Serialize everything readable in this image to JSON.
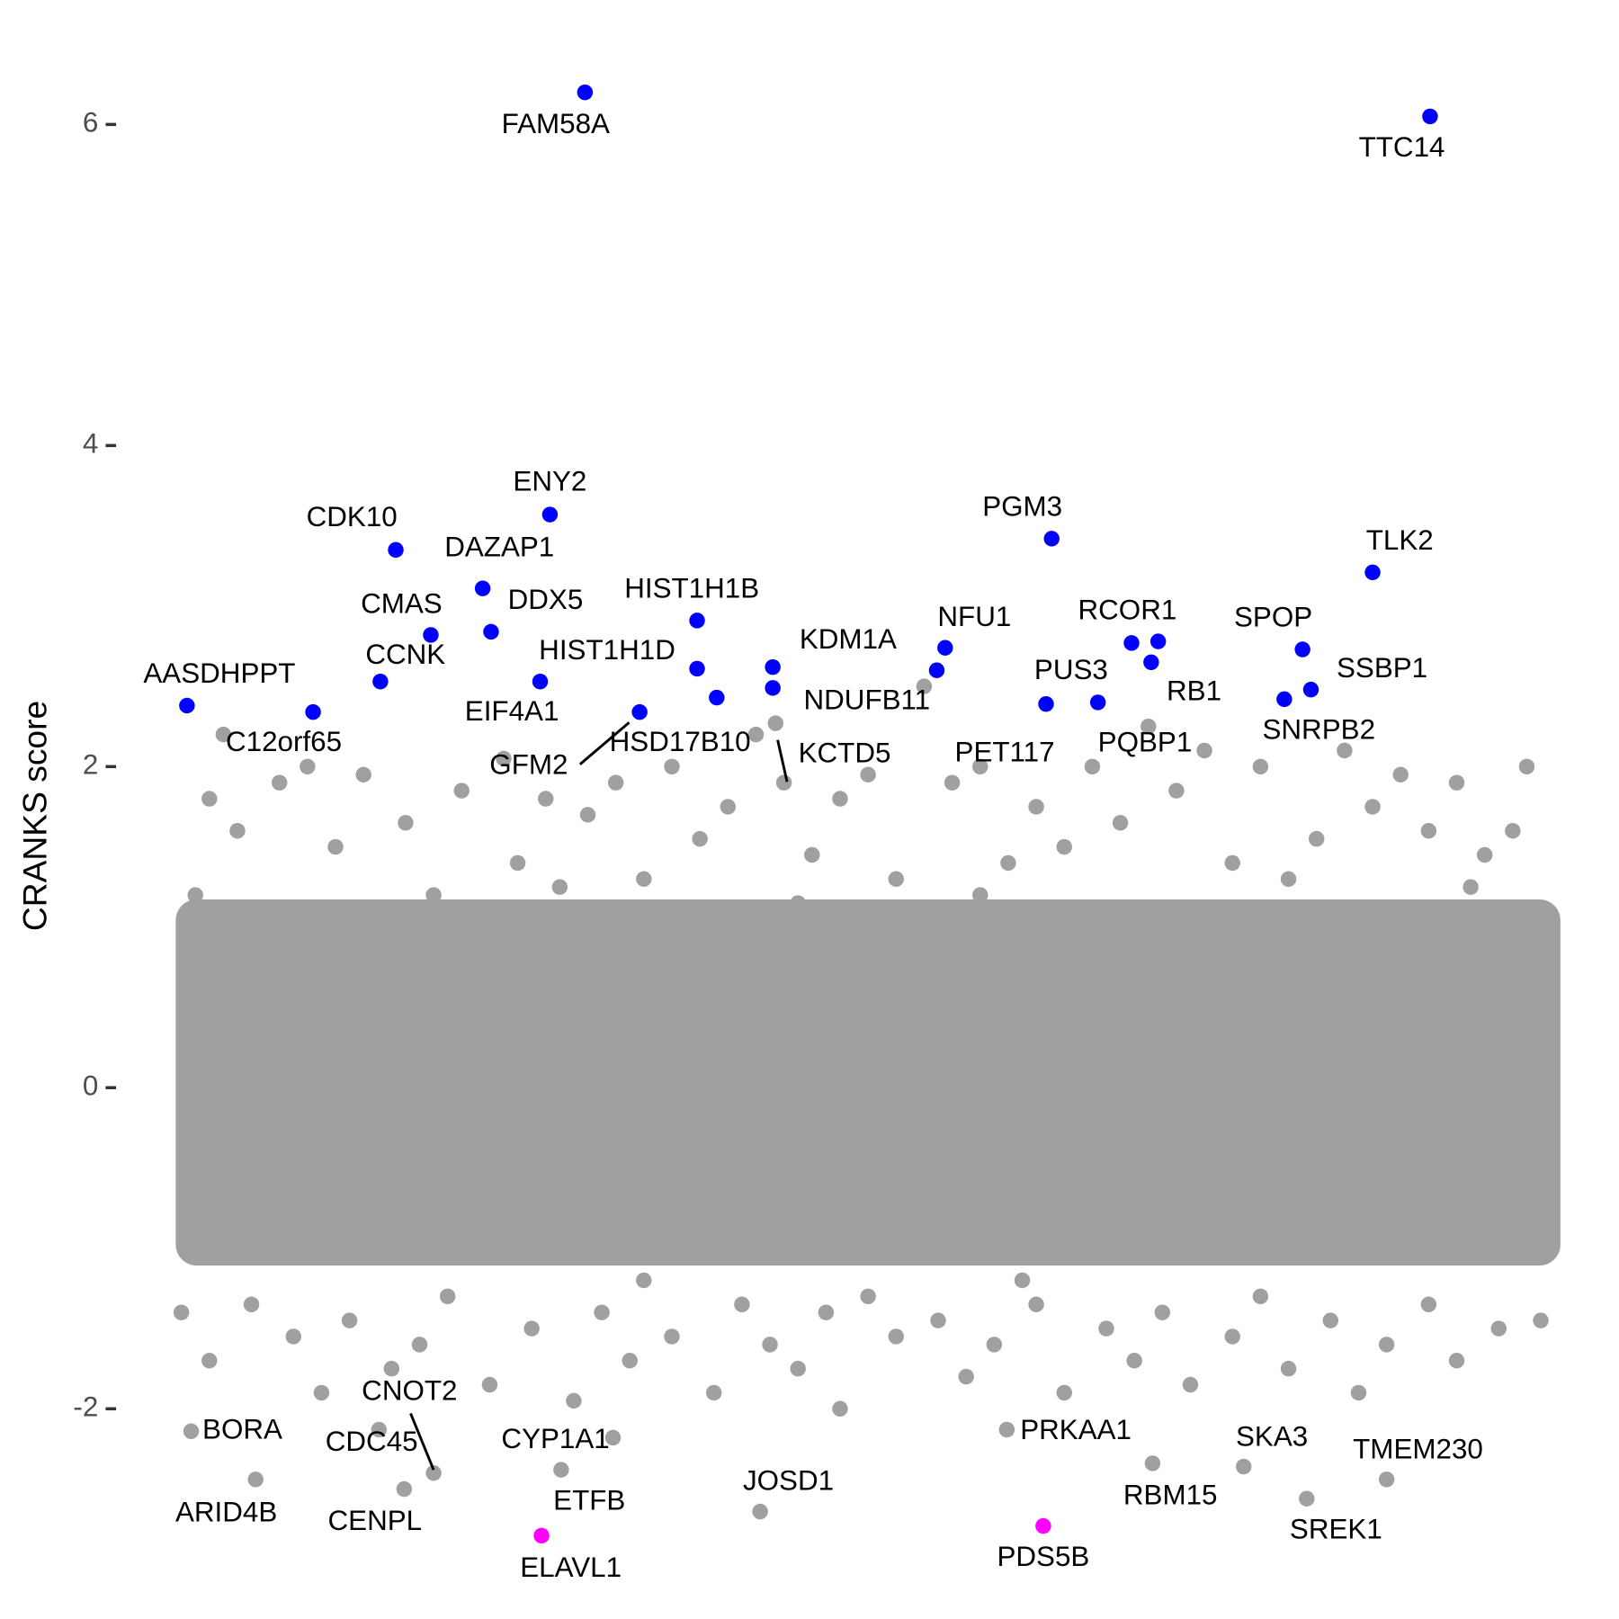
{
  "chart_data": {
    "type": "scatter",
    "y_label": "CRANKS score",
    "xlim": [
      0,
      100
    ],
    "ylim": [
      -3.1,
      6.35
    ],
    "yticks": [
      -2,
      0,
      2,
      4,
      6
    ],
    "grid": false,
    "series": [
      {
        "color": "#a0a0a0",
        "x": [
          3,
          4,
          5,
          8,
          10,
          12,
          14,
          17,
          19,
          21,
          24,
          25,
          27,
          30,
          32,
          34,
          36,
          38,
          40,
          42,
          44,
          46,
          48,
          50,
          52,
          54,
          56,
          58,
          60,
          62,
          64,
          66,
          68,
          70,
          72,
          74,
          76,
          78,
          80,
          82,
          84,
          86,
          88,
          90,
          92,
          94,
          96,
          97,
          2,
          15,
          28,
          45,
          58,
          75,
          93,
          98,
          1,
          3,
          6,
          9,
          11,
          13,
          16,
          18,
          20,
          23,
          26,
          29,
          31,
          33,
          36,
          39,
          41,
          43,
          45,
          47,
          50,
          52,
          55,
          57,
          59,
          62,
          64,
          67,
          69,
          71,
          73,
          76,
          78,
          80,
          83,
          85,
          87,
          90,
          92,
          95,
          98,
          48,
          34,
          61
        ],
        "values": [
          1.8,
          2.2,
          1.6,
          1.9,
          2.0,
          1.5,
          1.95,
          1.65,
          1.2,
          1.85,
          2.05,
          1.4,
          1.8,
          1.7,
          1.9,
          1.3,
          2.0,
          1.55,
          1.75,
          2.2,
          1.9,
          1.45,
          1.8,
          1.95,
          1.3,
          2.5,
          1.9,
          2.0,
          1.4,
          1.75,
          1.5,
          2.0,
          1.65,
          2.25,
          1.85,
          2.1,
          1.4,
          2.0,
          1.3,
          1.55,
          2.1,
          1.75,
          1.95,
          1.6,
          1.9,
          1.45,
          1.6,
          2.0,
          1.2,
          1.1,
          1.25,
          1.15,
          1.2,
          1.1,
          1.25,
          1.1,
          -1.4,
          -1.7,
          -1.35,
          -1.55,
          -1.9,
          -1.45,
          -1.75,
          -1.6,
          -1.3,
          -1.85,
          -1.5,
          -1.95,
          -1.4,
          -1.7,
          -1.55,
          -1.9,
          -1.35,
          -1.6,
          -1.75,
          -1.4,
          -1.3,
          -1.55,
          -1.45,
          -1.8,
          -1.6,
          -1.35,
          -1.9,
          -1.5,
          -1.7,
          -1.4,
          -1.85,
          -1.55,
          -1.3,
          -1.75,
          -1.45,
          -1.9,
          -1.6,
          -1.35,
          -1.7,
          -1.5,
          -1.45,
          -2.0,
          -1.2,
          -1.2
        ]
      },
      {
        "color": "#a0a0a0",
        "x": [
          43.4,
          1.7,
          6.3,
          15.1,
          19.0,
          16.9,
          31.8,
          28.1,
          42.3,
          59.9,
          70.3,
          76.8,
          81.3,
          87.0
        ],
        "values": [
          2.27,
          -2.14,
          -2.44,
          -2.13,
          -2.4,
          -2.5,
          -2.18,
          -2.38,
          -2.64,
          -2.13,
          -2.34,
          -2.36,
          -2.56,
          -2.44
        ],
        "labels": [
          "KCTD5",
          "BORA",
          "ARID4B",
          "CDC45",
          "CNOT2",
          "CENPL",
          "CYP1A1",
          "ETFB",
          "JOSD1",
          "PRKAA1",
          "RBM15",
          "SKA3",
          "SREK1",
          "TMEM230"
        ]
      },
      {
        "color": "#0000ff",
        "x": [
          29.8,
          90.1,
          27.3,
          16.3,
          22.5,
          63.1,
          86.0,
          18.8,
          23.1,
          37.8,
          37.8,
          43.2,
          55.5,
          68.8,
          70.7,
          70.2,
          81.0,
          81.6,
          79.7,
          15.2,
          1.4,
          10.4,
          26.6,
          33.7,
          39.2,
          43.2,
          54.9,
          62.7,
          66.4
        ],
        "values": [
          6.2,
          6.05,
          3.57,
          3.35,
          3.11,
          3.42,
          3.21,
          2.82,
          2.84,
          2.91,
          2.61,
          2.62,
          2.74,
          2.77,
          2.78,
          2.65,
          2.73,
          2.48,
          2.42,
          2.53,
          2.38,
          2.34,
          2.53,
          2.34,
          2.43,
          2.49,
          2.6,
          2.39,
          2.4
        ],
        "labels": [
          "FAM58A",
          "TTC14",
          "ENY2",
          "CDK10",
          "DAZAP1",
          "PGM3",
          "TLK2",
          "CMAS",
          "DDX5",
          "HIST1H1B",
          "HIST1H1D",
          "KDM1A",
          "NFU1",
          "RCOR1",
          null,
          "RB1",
          "SPOP",
          "SSBP1",
          "SNRPB2",
          "CCNK",
          "AASDHPPT",
          "C12orf65",
          "EIF4A1",
          "GFM2",
          "HSD17B10",
          "NDUFB11",
          "PET117",
          "PUS3",
          "PQBP1"
        ]
      },
      {
        "color": "#ff00ff",
        "x": [
          26.7,
          62.5
        ],
        "values": [
          -2.79,
          -2.73
        ],
        "labels": [
          "ELAVL1",
          "PDS5B"
        ]
      }
    ]
  }
}
